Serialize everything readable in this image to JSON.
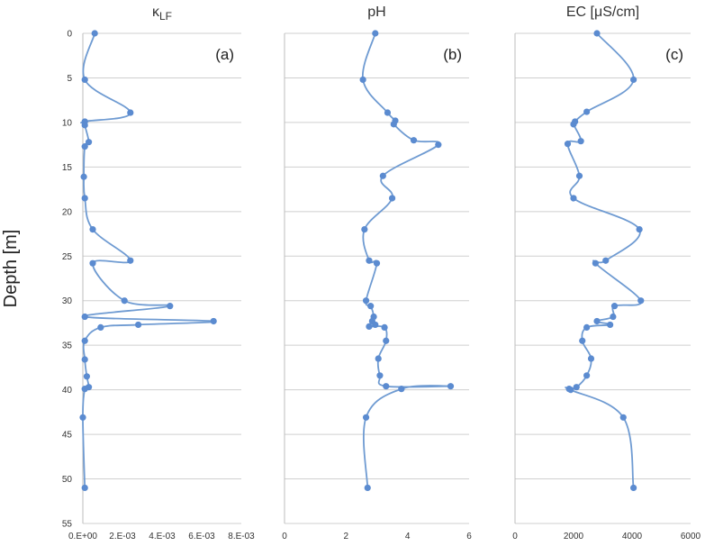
{
  "figure": {
    "ylabel": "Depth [m]",
    "line_color": "#6f9bd2",
    "marker_color": "#5b8bd0",
    "grid_color": "#cfcfcf"
  },
  "chart_data": [
    {
      "type": "line",
      "panel_label": "(a)",
      "title_main": "κ",
      "title_sub": "LF",
      "xlim": [
        0,
        0.008
      ],
      "ylim": [
        0,
        55
      ],
      "y_inverted": true,
      "x_ticks": [
        "0.E+00",
        "2.E-03",
        "4.E-03",
        "6.E-03",
        "8.E-03"
      ],
      "x_tick_values": [
        0,
        0.002,
        0.004,
        0.006,
        0.008
      ],
      "y_ticks": [
        "0",
        "5",
        "10",
        "15",
        "20",
        "25",
        "30",
        "35",
        "40",
        "45",
        "50",
        "55"
      ],
      "y_tick_values": [
        0,
        5,
        10,
        15,
        20,
        25,
        30,
        35,
        40,
        45,
        50,
        55
      ],
      "grid": "horizontal",
      "points": [
        {
          "x": 0.0006,
          "y": 0
        },
        {
          "x": 0.0001,
          "y": 5.2
        },
        {
          "x": 0.0024,
          "y": 8.9
        },
        {
          "x": 0.0001,
          "y": 9.9
        },
        {
          "x": 0.0001,
          "y": 10.3
        },
        {
          "x": 0.0003,
          "y": 12.2
        },
        {
          "x": 0.0001,
          "y": 12.7
        },
        {
          "x": 5e-05,
          "y": 16.1
        },
        {
          "x": 0.0001,
          "y": 18.5
        },
        {
          "x": 0.0005,
          "y": 22.0
        },
        {
          "x": 0.0024,
          "y": 25.5
        },
        {
          "x": 0.0005,
          "y": 25.8
        },
        {
          "x": 0.0021,
          "y": 30.0
        },
        {
          "x": 0.0044,
          "y": 30.6
        },
        {
          "x": 0.0001,
          "y": 31.8
        },
        {
          "x": 0.0066,
          "y": 32.3
        },
        {
          "x": 0.0028,
          "y": 32.7
        },
        {
          "x": 0.0009,
          "y": 33.0
        },
        {
          "x": 0.0001,
          "y": 34.5
        },
        {
          "x": 0.0001,
          "y": 36.6
        },
        {
          "x": 0.0002,
          "y": 38.5
        },
        {
          "x": 0.0003,
          "y": 39.7
        },
        {
          "x": 0.0001,
          "y": 39.9
        },
        {
          "x": 0.0,
          "y": 43.1
        },
        {
          "x": 0.0001,
          "y": 51.0
        }
      ]
    },
    {
      "type": "line",
      "panel_label": "(b)",
      "title_main": "pH",
      "title_sub": "",
      "xlim": [
        0,
        6
      ],
      "ylim": [
        0,
        55
      ],
      "y_inverted": true,
      "x_ticks": [
        "0",
        "2",
        "4",
        "6"
      ],
      "x_tick_values": [
        0,
        2,
        4,
        6
      ],
      "grid": "horizontal",
      "points": [
        {
          "x": 2.95,
          "y": 0
        },
        {
          "x": 2.55,
          "y": 5.2
        },
        {
          "x": 3.35,
          "y": 8.9
        },
        {
          "x": 3.6,
          "y": 9.8
        },
        {
          "x": 3.55,
          "y": 10.2
        },
        {
          "x": 4.2,
          "y": 12.0
        },
        {
          "x": 5.0,
          "y": 12.5
        },
        {
          "x": 3.2,
          "y": 16.0
        },
        {
          "x": 3.5,
          "y": 18.5
        },
        {
          "x": 2.6,
          "y": 22.0
        },
        {
          "x": 2.75,
          "y": 25.5
        },
        {
          "x": 3.0,
          "y": 25.8
        },
        {
          "x": 2.65,
          "y": 30.0
        },
        {
          "x": 2.8,
          "y": 30.6
        },
        {
          "x": 2.9,
          "y": 31.8
        },
        {
          "x": 2.85,
          "y": 32.3
        },
        {
          "x": 2.95,
          "y": 32.7
        },
        {
          "x": 2.75,
          "y": 32.9
        },
        {
          "x": 3.25,
          "y": 33.0
        },
        {
          "x": 3.3,
          "y": 34.5
        },
        {
          "x": 3.05,
          "y": 36.5
        },
        {
          "x": 3.1,
          "y": 38.4
        },
        {
          "x": 3.3,
          "y": 39.6
        },
        {
          "x": 5.4,
          "y": 39.6
        },
        {
          "x": 3.8,
          "y": 39.9
        },
        {
          "x": 2.65,
          "y": 43.1
        },
        {
          "x": 2.7,
          "y": 51.0
        }
      ]
    },
    {
      "type": "line",
      "panel_label": "(c)",
      "title_main": "EC  [μS/cm]",
      "title_sub": "",
      "xlim": [
        0,
        6000
      ],
      "ylim": [
        0,
        55
      ],
      "y_inverted": true,
      "x_ticks": [
        "0",
        "2000",
        "4000",
        "6000"
      ],
      "x_tick_values": [
        0,
        2000,
        4000,
        6000
      ],
      "grid": "horizontal",
      "points": [
        {
          "x": 2800,
          "y": 0
        },
        {
          "x": 4050,
          "y": 5.2
        },
        {
          "x": 2450,
          "y": 8.8
        },
        {
          "x": 2050,
          "y": 9.9
        },
        {
          "x": 2000,
          "y": 10.2
        },
        {
          "x": 2250,
          "y": 12.1
        },
        {
          "x": 1800,
          "y": 12.4
        },
        {
          "x": 2200,
          "y": 16.0
        },
        {
          "x": 2000,
          "y": 18.5
        },
        {
          "x": 4250,
          "y": 22.0
        },
        {
          "x": 3100,
          "y": 25.5
        },
        {
          "x": 2750,
          "y": 25.8
        },
        {
          "x": 4300,
          "y": 30.0
        },
        {
          "x": 3400,
          "y": 30.6
        },
        {
          "x": 3350,
          "y": 31.8
        },
        {
          "x": 2800,
          "y": 32.3
        },
        {
          "x": 3250,
          "y": 32.7
        },
        {
          "x": 2450,
          "y": 33.0
        },
        {
          "x": 2300,
          "y": 34.5
        },
        {
          "x": 2600,
          "y": 36.5
        },
        {
          "x": 2450,
          "y": 38.4
        },
        {
          "x": 2100,
          "y": 39.7
        },
        {
          "x": 1850,
          "y": 39.9
        },
        {
          "x": 1900,
          "y": 40.0
        },
        {
          "x": 3700,
          "y": 43.1
        },
        {
          "x": 4050,
          "y": 51.0
        }
      ]
    }
  ]
}
